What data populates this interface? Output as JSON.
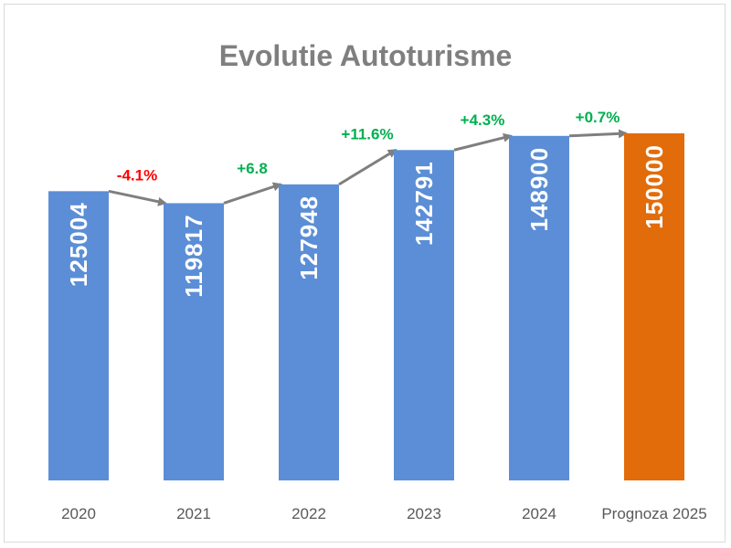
{
  "chart_data": {
    "type": "bar",
    "title": "Evolutie Autoturisme",
    "categories": [
      "2020",
      "2021",
      "2022",
      "2023",
      "2024",
      "Prognoza 2025"
    ],
    "values": [
      125004,
      119817,
      127948,
      142791,
      148900,
      150000
    ],
    "value_labels": [
      "125004",
      "119817",
      "127948",
      "142791",
      "148900",
      "150000"
    ],
    "changes": [
      "-4.1%",
      "+6.8",
      "+11.6%",
      "+4.3%",
      "+0.7%"
    ],
    "change_colors": [
      "#ff0000",
      "#00b050",
      "#00b050",
      "#00b050",
      "#00b050"
    ],
    "bar_colors": [
      "#5b8ed6",
      "#5b8ed6",
      "#5b8ed6",
      "#5b8ed6",
      "#5b8ed6",
      "#e26b0a"
    ],
    "arrow_color": "#7f7f7f",
    "xlabel": "",
    "ylabel": "",
    "grid": false,
    "legend": "none"
  }
}
